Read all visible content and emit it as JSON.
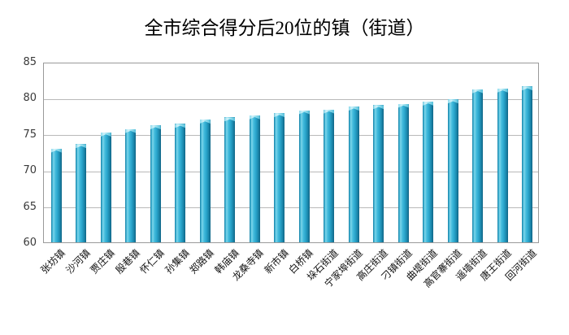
{
  "chart_data": {
    "type": "bar",
    "title": "全市综合得分后20位的镇（街道）",
    "categories": [
      "张坊镇",
      "沙河镇",
      "贾庄镇",
      "殷巷镇",
      "怀仁镇",
      "孙集镇",
      "郑路镇",
      "韩庙镇",
      "龙桑寺镇",
      "新市镇",
      "白桥镇",
      "垛石街道",
      "宁家埠街道",
      "高庄街道",
      "刁镇街道",
      "曲堤街道",
      "高官寨街道",
      "遥墙街道",
      "唐王街道",
      "回河街道"
    ],
    "values": [
      73.0,
      73.6,
      75.2,
      75.7,
      76.2,
      76.4,
      77.0,
      77.3,
      77.6,
      77.9,
      78.3,
      78.4,
      78.8,
      79.0,
      79.2,
      79.5,
      79.8,
      81.2,
      81.3,
      81.6
    ],
    "xlabel": "",
    "ylabel": "",
    "ylim": [
      60,
      85
    ],
    "yticks": [
      60,
      65,
      70,
      75,
      80,
      85
    ],
    "grid": true,
    "legend": "none"
  },
  "colors": {
    "bar_main": "#2fa9cf",
    "bar_edge_dark": "#0f6485",
    "bar_highlight": "#7dd6ea",
    "gridline": "#b9b9b9",
    "plot_border": "#9a9a9a",
    "axis_text": "#3a3a3a",
    "title_text": "#000000",
    "background": "#ffffff"
  }
}
